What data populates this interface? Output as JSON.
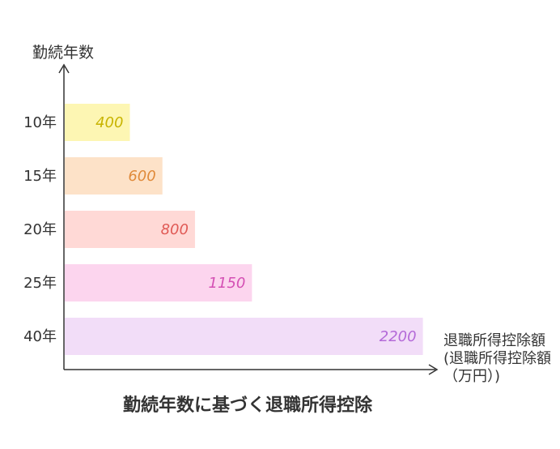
{
  "chart_data": {
    "type": "bar",
    "orientation": "horizontal",
    "title": "勤続年数に基づく退職所得控除",
    "ylabel": "勤続年数",
    "xlabel": "退職所得控除額 (退職所得控除額（万円）)",
    "categories": [
      "10年",
      "15年",
      "20年",
      "25年",
      "40年"
    ],
    "values": [
      400,
      600,
      800,
      1150,
      2200
    ],
    "value_labels": [
      "400",
      "600",
      "800",
      "1150",
      "2200"
    ],
    "xlim": [
      0,
      2540
    ],
    "grid": false,
    "legend": "none",
    "bar_colors": [
      "#FDF6B3",
      "#FDE2C8",
      "#FFD9D6",
      "#FCD5EE",
      "#F2DDF8"
    ],
    "label_colors": [
      "#C8B400",
      "#E08A3A",
      "#E05A55",
      "#D44FB4",
      "#B46AD8"
    ]
  }
}
